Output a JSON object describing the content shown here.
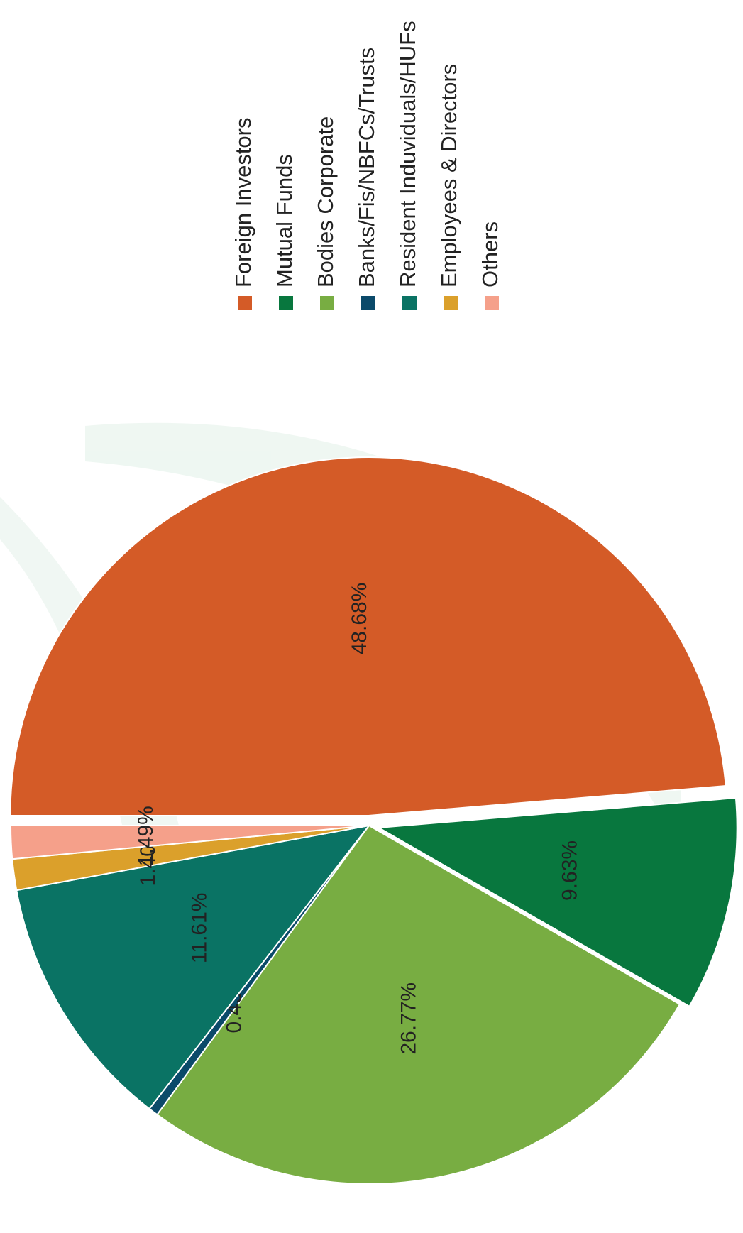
{
  "chart_data": {
    "type": "pie",
    "categories": [
      "Foreign Investors",
      "Mutual Funds",
      "Bodies Corporate",
      "Banks/Fis/NBFCs/Trusts",
      "Resident Induviduals/HUFs",
      "Employees & Directors",
      "Others"
    ],
    "values": [
      48.68,
      9.63,
      26.77,
      0.43,
      11.61,
      1.4,
      1.49
    ],
    "value_labels": [
      "48.68%",
      "9.63%",
      "26.77%",
      "0.43%",
      "11.61%",
      "1.40%",
      "1.49%"
    ],
    "colors": [
      "#d45b27",
      "#08773e",
      "#78ad42",
      "#0b4a6a",
      "#0a7364",
      "#dba02b",
      "#f5a08a"
    ],
    "legend": "right"
  }
}
